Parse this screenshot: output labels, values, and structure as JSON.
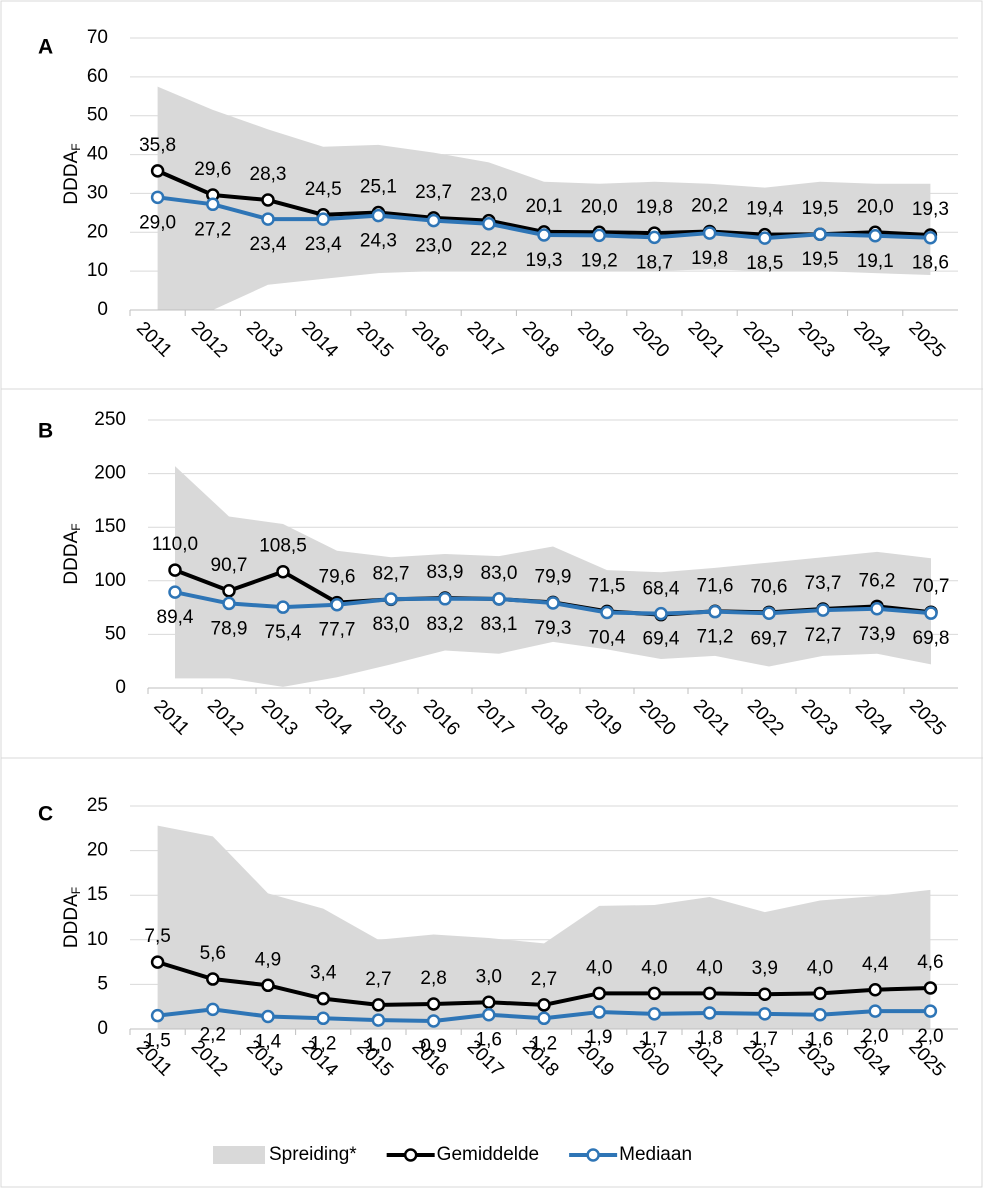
{
  "chart_data": [
    {
      "type": "line",
      "label": "A",
      "y_label": "DDDA",
      "y_label_subscript": "F",
      "categories": [
        "2011",
        "2012",
        "2013",
        "2014",
        "2015",
        "2016",
        "2017",
        "2018",
        "2019",
        "2020",
        "2021",
        "2022",
        "2023",
        "2024",
        "2025"
      ],
      "ylim": [
        0,
        70
      ],
      "yticks": [
        0,
        10,
        20,
        30,
        40,
        50,
        60,
        70
      ],
      "grid": true,
      "band": {
        "color": "#d9d9d9",
        "upper": [
          57.5,
          51.5,
          46.5,
          42,
          42.5,
          40.5,
          38,
          33,
          32.5,
          33,
          32.5,
          31.5,
          33,
          32.5,
          32.5
        ],
        "lower": [
          0,
          0,
          6.5,
          8,
          9.5,
          10,
          10,
          10,
          10,
          10,
          10.5,
          10,
          10,
          9.5,
          9
        ]
      },
      "series": [
        {
          "color": "#000000",
          "label_side": "above",
          "values": [
            35.8,
            29.6,
            28.3,
            24.5,
            25.1,
            23.7,
            23.0,
            20.1,
            20.0,
            19.8,
            20.2,
            19.4,
            19.5,
            20.0,
            19.3
          ],
          "value_labels": [
            "35,8",
            "29,6",
            "28,3",
            "24,5",
            "25,1",
            "23,7",
            "23,0",
            "20,1",
            "20,0",
            "19,8",
            "20,2",
            "19,4",
            "19,5",
            "20,0",
            "19,3"
          ]
        },
        {
          "color": "#2e75b6",
          "label_side": "below",
          "values": [
            29.0,
            27.2,
            23.4,
            23.4,
            24.3,
            23.0,
            22.2,
            19.3,
            19.2,
            18.7,
            19.8,
            18.5,
            19.5,
            19.1,
            18.6
          ],
          "value_labels": [
            "29,0",
            "27,2",
            "23,4",
            "23,4",
            "24,3",
            "23,0",
            "22,2",
            "19,3",
            "19,2",
            "18,7",
            "19,8",
            "18,5",
            "19,5",
            "19,1",
            "18,6"
          ]
        }
      ]
    },
    {
      "type": "line",
      "label": "B",
      "y_label": "DDDA",
      "y_label_subscript": "F",
      "categories": [
        "2011",
        "2012",
        "2013",
        "2014",
        "2015",
        "2016",
        "2017",
        "2018",
        "2019",
        "2020",
        "2021",
        "2022",
        "2023",
        "2024",
        "2025"
      ],
      "ylim": [
        0,
        250
      ],
      "yticks": [
        0,
        50,
        100,
        150,
        200,
        250
      ],
      "grid": true,
      "band": {
        "color": "#d9d9d9",
        "upper": [
          207,
          160,
          153,
          128,
          122,
          125,
          123,
          132,
          110,
          108,
          112,
          117,
          122,
          127,
          121
        ],
        "lower": [
          9,
          9,
          1,
          10,
          22,
          35,
          32,
          43,
          36,
          27,
          30,
          20,
          30,
          32,
          22
        ]
      },
      "series": [
        {
          "color": "#000000",
          "label_side": "above",
          "values": [
            110.0,
            90.7,
            108.5,
            79.6,
            82.7,
            83.9,
            83.0,
            79.9,
            71.5,
            68.4,
            71.6,
            70.6,
            73.7,
            76.2,
            70.7
          ],
          "value_labels": [
            "110,0",
            "90,7",
            "108,5",
            "79,6",
            "82,7",
            "83,9",
            "83,0",
            "79,9",
            "71,5",
            "68,4",
            "71,6",
            "70,6",
            "73,7",
            "76,2",
            "70,7"
          ]
        },
        {
          "color": "#2e75b6",
          "label_side": "below",
          "values": [
            89.4,
            78.9,
            75.4,
            77.7,
            83.0,
            83.2,
            83.1,
            79.3,
            70.4,
            69.4,
            71.2,
            69.7,
            72.7,
            73.9,
            69.8
          ],
          "value_labels": [
            "89,4",
            "78,9",
            "75,4",
            "77,7",
            "83,0",
            "83,2",
            "83,1",
            "79,3",
            "70,4",
            "69,4",
            "71,2",
            "69,7",
            "72,7",
            "73,9",
            "69,8"
          ]
        }
      ]
    },
    {
      "type": "line",
      "label": "C",
      "y_label": "DDDA",
      "y_label_subscript": "F",
      "categories": [
        "2011",
        "2012",
        "2013",
        "2014",
        "2015",
        "2016",
        "2017",
        "2018",
        "2019",
        "2020",
        "2021",
        "2022",
        "2023",
        "2024",
        "2025"
      ],
      "ylim": [
        0,
        25
      ],
      "yticks": [
        0,
        5,
        10,
        15,
        20,
        25
      ],
      "grid": true,
      "band": {
        "color": "#d9d9d9",
        "upper": [
          22.8,
          21.6,
          15.2,
          13.5,
          10,
          10.6,
          10.2,
          9.6,
          13.8,
          13.9,
          14.8,
          13.1,
          14.4,
          14.9,
          15.6
        ],
        "lower": [
          0,
          0,
          0,
          0,
          0,
          0,
          0,
          0,
          0,
          0,
          0,
          0,
          0,
          0,
          0
        ]
      },
      "series": [
        {
          "color": "#000000",
          "label_side": "above",
          "values": [
            7.5,
            5.6,
            4.9,
            3.4,
            2.7,
            2.8,
            3.0,
            2.7,
            4.0,
            4.0,
            4.0,
            3.9,
            4.0,
            4.4,
            4.6
          ],
          "value_labels": [
            "7,5",
            "5,6",
            "4,9",
            "3,4",
            "2,7",
            "2,8",
            "3,0",
            "2,7",
            "4,0",
            "4,0",
            "4,0",
            "3,9",
            "4,0",
            "4,4",
            "4,6"
          ]
        },
        {
          "color": "#2e75b6",
          "label_side": "below",
          "values": [
            1.5,
            2.2,
            1.4,
            1.2,
            1.0,
            0.9,
            1.6,
            1.2,
            1.9,
            1.7,
            1.8,
            1.7,
            1.6,
            2.0,
            2.0
          ],
          "value_labels": [
            "1,5",
            "2,2",
            "1,4",
            "1,2",
            "1,0",
            "0,9",
            "1,6",
            "1,2",
            "1,9",
            "1,7",
            "1,8",
            "1,7",
            "1,6",
            "2,0",
            "2,0"
          ]
        }
      ]
    }
  ],
  "legend": [
    {
      "name": "Spreiding*",
      "color": "#d9d9d9",
      "kind": "area"
    },
    {
      "name": "Gemiddelde",
      "color": "#000000",
      "kind": "line"
    },
    {
      "name": "Mediaan",
      "color": "#2e75b6",
      "kind": "line"
    }
  ]
}
